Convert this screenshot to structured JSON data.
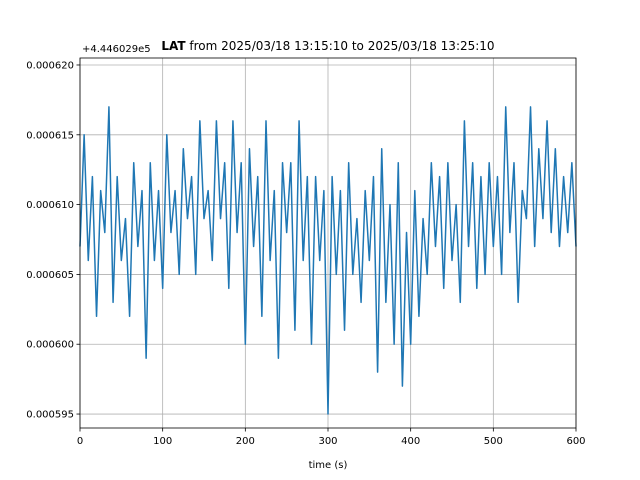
{
  "chart_data": {
    "type": "line",
    "title_bold": "LAT",
    "title_rest": " from 2025/03/18 13:15:10 to 2025/03/18 13:25:10",
    "offset_label": "+4.446029e5",
    "xlabel": "time (s)",
    "ylabel": "",
    "xlim": [
      0,
      600
    ],
    "ylim": [
      0.000594,
      0.0006205
    ],
    "xticks": [
      0,
      100,
      200,
      300,
      400,
      500,
      600
    ],
    "xtick_labels": [
      "0",
      "100",
      "200",
      "300",
      "400",
      "500",
      "600"
    ],
    "yticks": [
      0.000595,
      0.0006,
      0.000605,
      0.00061,
      0.000615,
      0.00062
    ],
    "ytick_labels": [
      "0.000595",
      "0.000600",
      "0.000605",
      "0.000610",
      "0.000615",
      "0.000620"
    ],
    "grid": true,
    "line_color": "#1f77b4",
    "series": [
      {
        "x": [
          0,
          5,
          10,
          15,
          20,
          25,
          30,
          35,
          40,
          45,
          50,
          55,
          60,
          65,
          70,
          75,
          80,
          85,
          90,
          95,
          100,
          105,
          110,
          115,
          120,
          125,
          130,
          135,
          140,
          145,
          150,
          155,
          160,
          165,
          170,
          175,
          180,
          185,
          190,
          195,
          200,
          205,
          210,
          215,
          220,
          225,
          230,
          235,
          240,
          245,
          250,
          255,
          260,
          265,
          270,
          275,
          280,
          285,
          290,
          295,
          300,
          305,
          310,
          315,
          320,
          325,
          330,
          335,
          340,
          345,
          350,
          355,
          360,
          365,
          370,
          375,
          380,
          385,
          390,
          395,
          400,
          405,
          410,
          415,
          420,
          425,
          430,
          435,
          440,
          445,
          450,
          455,
          460,
          465,
          470,
          475,
          480,
          485,
          490,
          495,
          500,
          505,
          510,
          515,
          520,
          525,
          530,
          535,
          540,
          545,
          550,
          555,
          560,
          565,
          570,
          575,
          580,
          585,
          590,
          595,
          600
        ],
        "y": [
          0.000607,
          0.000615,
          0.000606,
          0.000612,
          0.000602,
          0.000611,
          0.000608,
          0.000617,
          0.000603,
          0.000612,
          0.000606,
          0.000609,
          0.000602,
          0.000613,
          0.000607,
          0.000611,
          0.000599,
          0.000613,
          0.000606,
          0.000611,
          0.000604,
          0.000615,
          0.000608,
          0.000611,
          0.000605,
          0.000614,
          0.000609,
          0.000612,
          0.000605,
          0.000616,
          0.000609,
          0.000611,
          0.000606,
          0.000616,
          0.000609,
          0.000613,
          0.000604,
          0.000616,
          0.000608,
          0.000613,
          0.0006,
          0.000614,
          0.000607,
          0.000612,
          0.000602,
          0.000616,
          0.000606,
          0.000611,
          0.000599,
          0.000613,
          0.000608,
          0.000613,
          0.000601,
          0.000616,
          0.000606,
          0.000612,
          0.0006,
          0.000612,
          0.000606,
          0.000611,
          0.000595,
          0.000612,
          0.000605,
          0.000611,
          0.000601,
          0.000613,
          0.000605,
          0.000609,
          0.000603,
          0.000611,
          0.000606,
          0.000612,
          0.000598,
          0.000614,
          0.000603,
          0.00061,
          0.0006,
          0.000613,
          0.000597,
          0.000608,
          0.0006,
          0.000611,
          0.000602,
          0.000609,
          0.000605,
          0.000613,
          0.000607,
          0.000612,
          0.000604,
          0.000613,
          0.000606,
          0.00061,
          0.000603,
          0.000616,
          0.000607,
          0.000613,
          0.000604,
          0.000612,
          0.000605,
          0.000613,
          0.000607,
          0.000612,
          0.000605,
          0.000617,
          0.000608,
          0.000613,
          0.000603,
          0.000611,
          0.000609,
          0.000617,
          0.000607,
          0.000614,
          0.000609,
          0.000616,
          0.000608,
          0.000614,
          0.000607,
          0.000612,
          0.000608,
          0.000613,
          0.000607
        ]
      }
    ]
  }
}
